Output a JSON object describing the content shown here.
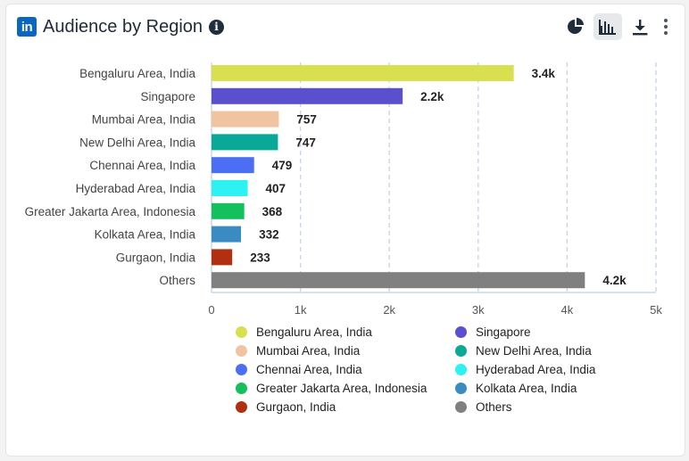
{
  "header": {
    "title": "Audience by Region",
    "logo_text": "in",
    "info_label": "i"
  },
  "toolbar": {
    "icons": [
      "pie-chart-icon",
      "bar-chart-icon",
      "download-icon",
      "more-vertical-icon"
    ],
    "active": "bar-chart-icon"
  },
  "chart_data": {
    "type": "bar",
    "orientation": "horizontal",
    "title": "Audience by Region",
    "xlabel": "",
    "ylabel": "",
    "xlim": [
      0,
      5000
    ],
    "x_ticks": [
      "0",
      "1k",
      "2k",
      "3k",
      "4k",
      "5k"
    ],
    "grid": "vertical dashed",
    "legend_position": "bottom",
    "categories": [
      "Bengaluru Area, India",
      "Singapore",
      "Mumbai Area, India",
      "New Delhi Area, India",
      "Chennai Area, India",
      "Hyderabad Area, India",
      "Greater Jakarta Area, Indonesia",
      "Kolkata Area, India",
      "Gurgaon, India",
      "Others"
    ],
    "values": [
      3400,
      2150,
      757,
      747,
      479,
      407,
      368,
      332,
      233,
      4200
    ],
    "value_labels": [
      "3.4k",
      "2.2k",
      "757",
      "747",
      "479",
      "407",
      "368",
      "332",
      "233",
      "4.2k"
    ],
    "colors": [
      "#d9e04f",
      "#5a4fcf",
      "#f0c4a0",
      "#0aa896",
      "#4c6ef5",
      "#2ef2f2",
      "#12c05c",
      "#3a8bc2",
      "#b03010",
      "#808080"
    ]
  }
}
